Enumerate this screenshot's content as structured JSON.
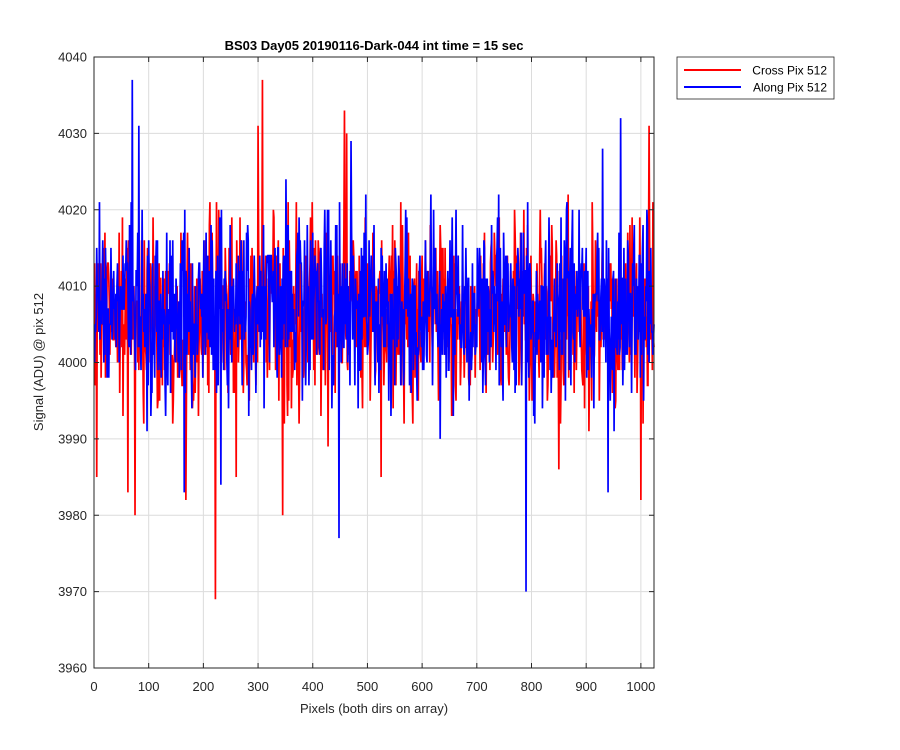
{
  "chart_data": {
    "type": "line",
    "title": "BS03 Day05 20190116-Dark-044 int time = 15 sec",
    "xlabel": "Pixels (both dirs on array)",
    "ylabel": "Signal (ADU) @ pix 512",
    "xlim": [
      0,
      1024
    ],
    "ylim": [
      3960,
      4040
    ],
    "x_ticks": [
      0,
      100,
      200,
      300,
      400,
      500,
      600,
      700,
      800,
      900,
      1000
    ],
    "y_ticks": [
      3960,
      3970,
      3980,
      3990,
      4000,
      4010,
      4020,
      4030,
      4040
    ],
    "grid": true,
    "legend_position": "outside top-right",
    "x_range": {
      "start": 1,
      "end": 1024,
      "step": 1
    },
    "series": [
      {
        "name": "Cross Pix 512",
        "color": "#ff0000",
        "baseline": 4006,
        "noise_amplitude": 7,
        "extremes": [
          {
            "x": 5,
            "y": 3985
          },
          {
            "x": 62,
            "y": 3983
          },
          {
            "x": 75,
            "y": 3980
          },
          {
            "x": 168,
            "y": 3982
          },
          {
            "x": 222,
            "y": 3969
          },
          {
            "x": 260,
            "y": 3985
          },
          {
            "x": 300,
            "y": 4031
          },
          {
            "x": 308,
            "y": 4037
          },
          {
            "x": 345,
            "y": 3980
          },
          {
            "x": 458,
            "y": 4033
          },
          {
            "x": 462,
            "y": 4030
          },
          {
            "x": 525,
            "y": 3985
          },
          {
            "x": 850,
            "y": 3986
          },
          {
            "x": 1000,
            "y": 3982
          },
          {
            "x": 1015,
            "y": 4031
          }
        ]
      },
      {
        "name": "Along Pix 512",
        "color": "#0000ff",
        "baseline": 4007,
        "noise_amplitude": 7,
        "extremes": [
          {
            "x": 70,
            "y": 4037
          },
          {
            "x": 82,
            "y": 4031
          },
          {
            "x": 165,
            "y": 3983
          },
          {
            "x": 232,
            "y": 3984
          },
          {
            "x": 448,
            "y": 3977
          },
          {
            "x": 470,
            "y": 4029
          },
          {
            "x": 790,
            "y": 3970
          },
          {
            "x": 930,
            "y": 4028
          },
          {
            "x": 940,
            "y": 3983
          },
          {
            "x": 963,
            "y": 4032
          }
        ]
      }
    ]
  }
}
